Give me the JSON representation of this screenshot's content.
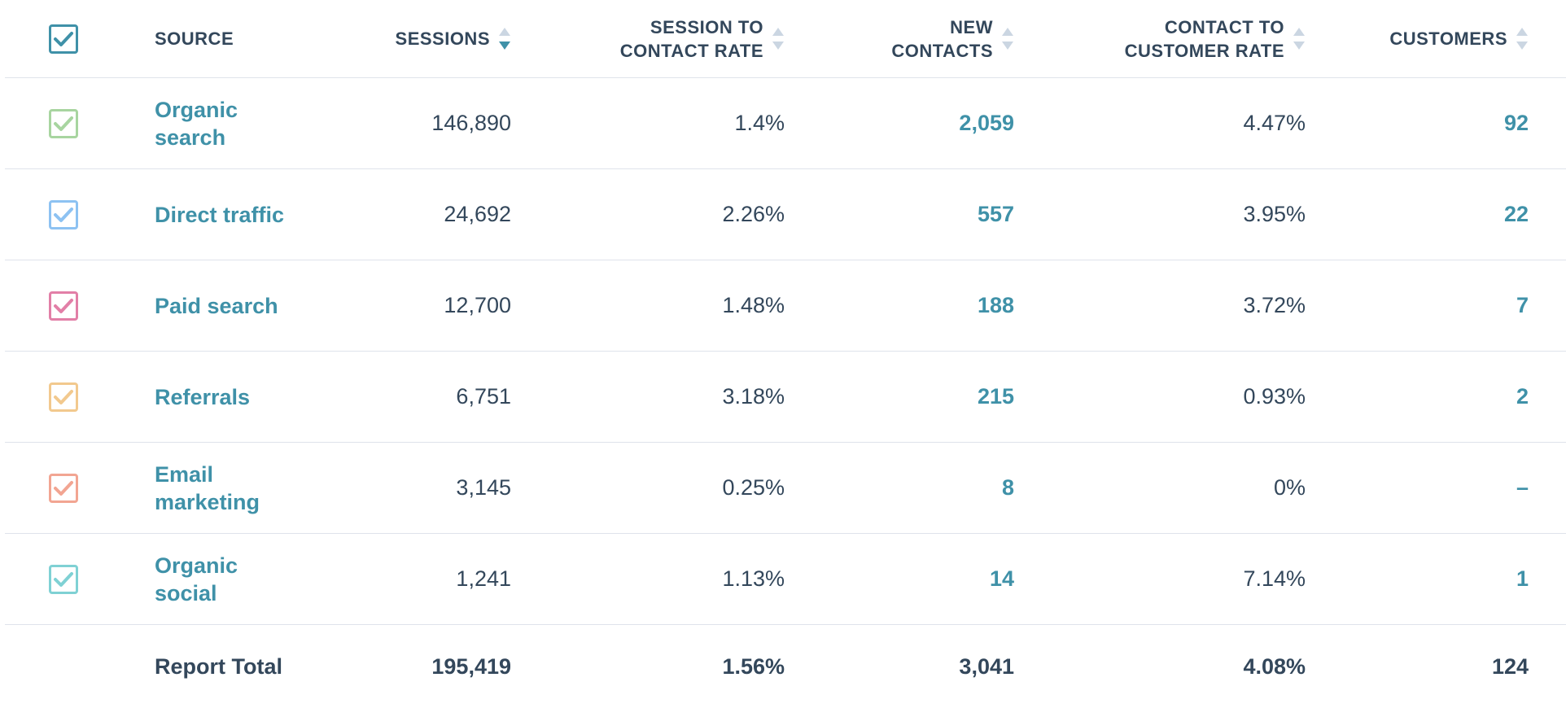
{
  "colors": {
    "link": "#3f91a8",
    "text": "#33475b",
    "divider": "#dfe3eb",
    "sort_inactive": "#cbd6e2"
  },
  "header": {
    "select_all_color": "#3f91a8",
    "source": "SOURCE",
    "sessions": "SESSIONS",
    "session_to_contact_rate_line1": "SESSION TO",
    "session_to_contact_rate_line2": "CONTACT RATE",
    "new_contacts_line1": "NEW",
    "new_contacts_line2": "CONTACTS",
    "contact_to_customer_rate_line1": "CONTACT TO",
    "contact_to_customer_rate_line2": "CUSTOMER RATE",
    "customers": "CUSTOMERS",
    "active_sort": "sessions-descending"
  },
  "rows": [
    {
      "source_line1": "Organic",
      "source_line2": "search",
      "sessions": "146,890",
      "session_to_contact_rate": "1.4%",
      "new_contacts": "2,059",
      "contact_to_customer_rate": "4.47%",
      "customers": "92",
      "checkbox_color": "#a8d5a0"
    },
    {
      "source_line1": "Direct traffic",
      "source_line2": "",
      "sessions": "24,692",
      "session_to_contact_rate": "2.26%",
      "new_contacts": "557",
      "contact_to_customer_rate": "3.95%",
      "customers": "22",
      "checkbox_color": "#8dc2f2"
    },
    {
      "source_line1": "Paid search",
      "source_line2": "",
      "sessions": "12,700",
      "session_to_contact_rate": "1.48%",
      "new_contacts": "188",
      "contact_to_customer_rate": "3.72%",
      "customers": "7",
      "checkbox_color": "#e27fa7"
    },
    {
      "source_line1": "Referrals",
      "source_line2": "",
      "sessions": "6,751",
      "session_to_contact_rate": "3.18%",
      "new_contacts": "215",
      "contact_to_customer_rate": "0.93%",
      "customers": "2",
      "checkbox_color": "#f2c98e"
    },
    {
      "source_line1": "Email",
      "source_line2": "marketing",
      "sessions": "3,145",
      "session_to_contact_rate": "0.25%",
      "new_contacts": "8",
      "contact_to_customer_rate": "0%",
      "customers": "–",
      "checkbox_color": "#f2a592"
    },
    {
      "source_line1": "Organic",
      "source_line2": "social",
      "sessions": "1,241",
      "session_to_contact_rate": "1.13%",
      "new_contacts": "14",
      "contact_to_customer_rate": "7.14%",
      "customers": "1",
      "checkbox_color": "#7fd1d4"
    }
  ],
  "total": {
    "label": "Report Total",
    "sessions": "195,419",
    "session_to_contact_rate": "1.56%",
    "new_contacts": "3,041",
    "contact_to_customer_rate": "4.08%",
    "customers": "124"
  }
}
